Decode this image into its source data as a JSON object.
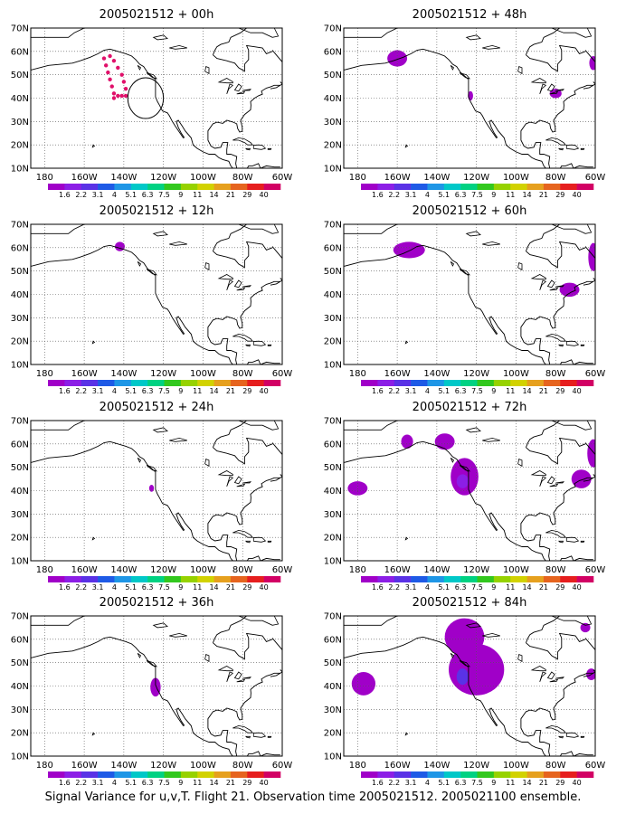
{
  "figure": {
    "footer": "Signal Variance for u,v,T. Flight 21. Observation time 2005021512. 2005021100 ensemble."
  },
  "axes": {
    "lon_labels": [
      "180",
      "160W",
      "140W",
      "120W",
      "100W",
      "80W",
      "60W"
    ],
    "lon_values": [
      -180,
      -160,
      -140,
      -120,
      -100,
      -80,
      -60
    ],
    "lat_labels": [
      "10N",
      "20N",
      "30N",
      "40N",
      "50N",
      "60N",
      "70N"
    ],
    "lat_values": [
      10,
      20,
      30,
      40,
      50,
      60,
      70
    ],
    "lon_range": [
      -187,
      -60
    ],
    "lat_range": [
      10,
      70
    ]
  },
  "colorbar": {
    "labels": [
      "1.6",
      "2.2",
      "3.1",
      "4",
      "5.1",
      "6.3",
      "7.5",
      "9",
      "11",
      "14",
      "21",
      "29",
      "40"
    ],
    "colors": [
      "#a000c8",
      "#8c1ee6",
      "#5a32e6",
      "#1e5ae6",
      "#1e96e6",
      "#00c8c8",
      "#00d282",
      "#32c81e",
      "#96d200",
      "#d2d200",
      "#e6a01e",
      "#e6641e",
      "#e61e1e",
      "#d20064"
    ]
  },
  "panels": [
    {
      "title": "2005021512 + 00h",
      "flight_track": [
        [
          -150,
          57
        ],
        [
          -149,
          54
        ],
        [
          -148,
          51
        ],
        [
          -147,
          48
        ],
        [
          -146,
          45
        ],
        [
          -145,
          42
        ],
        [
          -145,
          40
        ],
        [
          -143,
          41
        ],
        [
          -141,
          41
        ],
        [
          -139,
          41
        ],
        [
          -139,
          44
        ],
        [
          -140,
          47
        ],
        [
          -141,
          50
        ],
        [
          -143,
          53
        ],
        [
          -145,
          56
        ],
        [
          -147,
          58
        ]
      ],
      "target_circle": {
        "lon": -129,
        "lat": 40,
        "radius_deg": 9
      },
      "blobs": []
    },
    {
      "title": "2005021512 + 12h",
      "blobs": [
        {
          "lon": -142,
          "lat": 60.5,
          "rx": 2.5,
          "ry": 2,
          "color": "#a000c8"
        }
      ]
    },
    {
      "title": "2005021512 + 24h",
      "blobs": [
        {
          "lon": -126,
          "lat": 41,
          "rx": 1.2,
          "ry": 1.5,
          "color": "#a000c8"
        }
      ]
    },
    {
      "title": "2005021512 + 36h",
      "blobs": [
        {
          "lon": -124,
          "lat": 39.5,
          "rx": 2.6,
          "ry": 4,
          "color": "#a000c8"
        }
      ]
    },
    {
      "title": "2005021512 + 48h",
      "blobs": [
        {
          "lon": -160,
          "lat": 57,
          "rx": 5,
          "ry": 3.5,
          "color": "#a000c8"
        },
        {
          "lon": -123,
          "lat": 41,
          "rx": 1.3,
          "ry": 2,
          "color": "#a000c8"
        },
        {
          "lon": -80,
          "lat": 42,
          "rx": 3,
          "ry": 2,
          "color": "#a000c8"
        },
        {
          "lon": -61,
          "lat": 55,
          "rx": 2,
          "ry": 3,
          "color": "#a000c8"
        }
      ]
    },
    {
      "title": "2005021512 + 60h",
      "blobs": [
        {
          "lon": -154,
          "lat": 59,
          "rx": 8,
          "ry": 3.5,
          "color": "#a000c8"
        },
        {
          "lon": -73,
          "lat": 42,
          "rx": 5,
          "ry": 3,
          "color": "#a000c8"
        },
        {
          "lon": -61,
          "lat": 56,
          "rx": 2.5,
          "ry": 6,
          "color": "#a000c8"
        }
      ]
    },
    {
      "title": "2005021512 + 72h",
      "blobs": [
        {
          "lon": -180,
          "lat": 41,
          "rx": 5,
          "ry": 3,
          "color": "#a000c8"
        },
        {
          "lon": -155,
          "lat": 61,
          "rx": 3,
          "ry": 3,
          "color": "#a000c8"
        },
        {
          "lon": -136,
          "lat": 61,
          "rx": 5,
          "ry": 3.5,
          "color": "#a000c8"
        },
        {
          "lon": -126,
          "lat": 46,
          "rx": 7,
          "ry": 8,
          "color": "#a000c8"
        },
        {
          "lon": -127,
          "lat": 44,
          "rx": 3,
          "ry": 3,
          "color": "#8c1ee6"
        },
        {
          "lon": -67,
          "lat": 45,
          "rx": 5,
          "ry": 4,
          "color": "#a000c8"
        },
        {
          "lon": -61,
          "lat": 56,
          "rx": 3,
          "ry": 6,
          "color": "#a000c8"
        }
      ]
    },
    {
      "title": "2005021512 + 84h",
      "blobs": [
        {
          "lon": -177,
          "lat": 41,
          "rx": 6,
          "ry": 5,
          "color": "#a000c8"
        },
        {
          "lon": -126,
          "lat": 61,
          "rx": 10,
          "ry": 8,
          "color": "#a000c8"
        },
        {
          "lon": -120,
          "lat": 47,
          "rx": 14,
          "ry": 11,
          "color": "#a000c8"
        },
        {
          "lon": -127,
          "lat": 44,
          "rx": 3,
          "ry": 3.5,
          "color": "#5a32e6"
        },
        {
          "lon": -65,
          "lat": 65,
          "rx": 2.5,
          "ry": 2,
          "color": "#a000c8"
        },
        {
          "lon": -62,
          "lat": 45,
          "rx": 2.5,
          "ry": 2.5,
          "color": "#a000c8"
        }
      ]
    }
  ]
}
